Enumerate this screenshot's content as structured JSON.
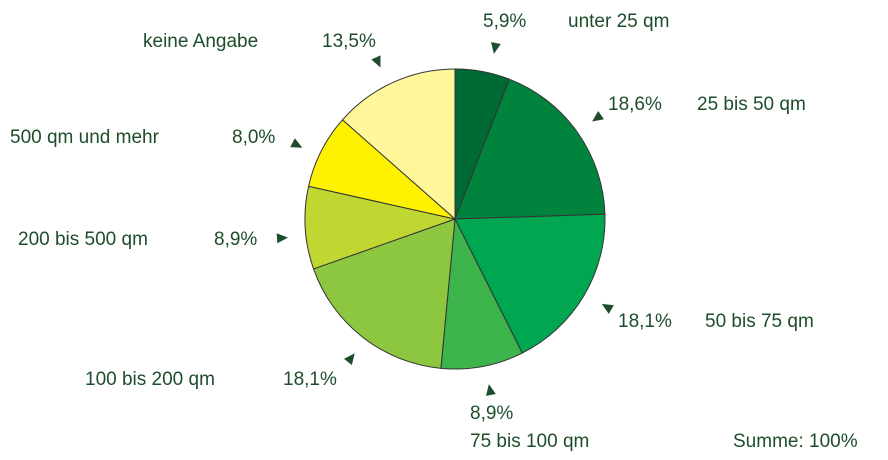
{
  "chart_data": {
    "type": "pie",
    "categories": [
      "unter 25 qm",
      "25 bis 50 qm",
      "50 bis 75 qm",
      "75 bis 100 qm",
      "100 bis 200 qm",
      "200 bis 500 qm",
      "500 qm und mehr",
      "keine Angabe"
    ],
    "values": [
      5.9,
      18.6,
      18.1,
      8.9,
      18.1,
      8.9,
      8.0,
      13.5
    ],
    "value_labels": [
      "5,9%",
      "18,6%",
      "18,1%",
      "8,9%",
      "18,1%",
      "8,9%",
      "8,0%",
      "13,5%"
    ],
    "colors": [
      "#006a35",
      "#00843d",
      "#00a650",
      "#3cb44b",
      "#8dc63f",
      "#c0d731",
      "#fff200",
      "#fff79a"
    ],
    "annotation": "Summe: 100%"
  }
}
